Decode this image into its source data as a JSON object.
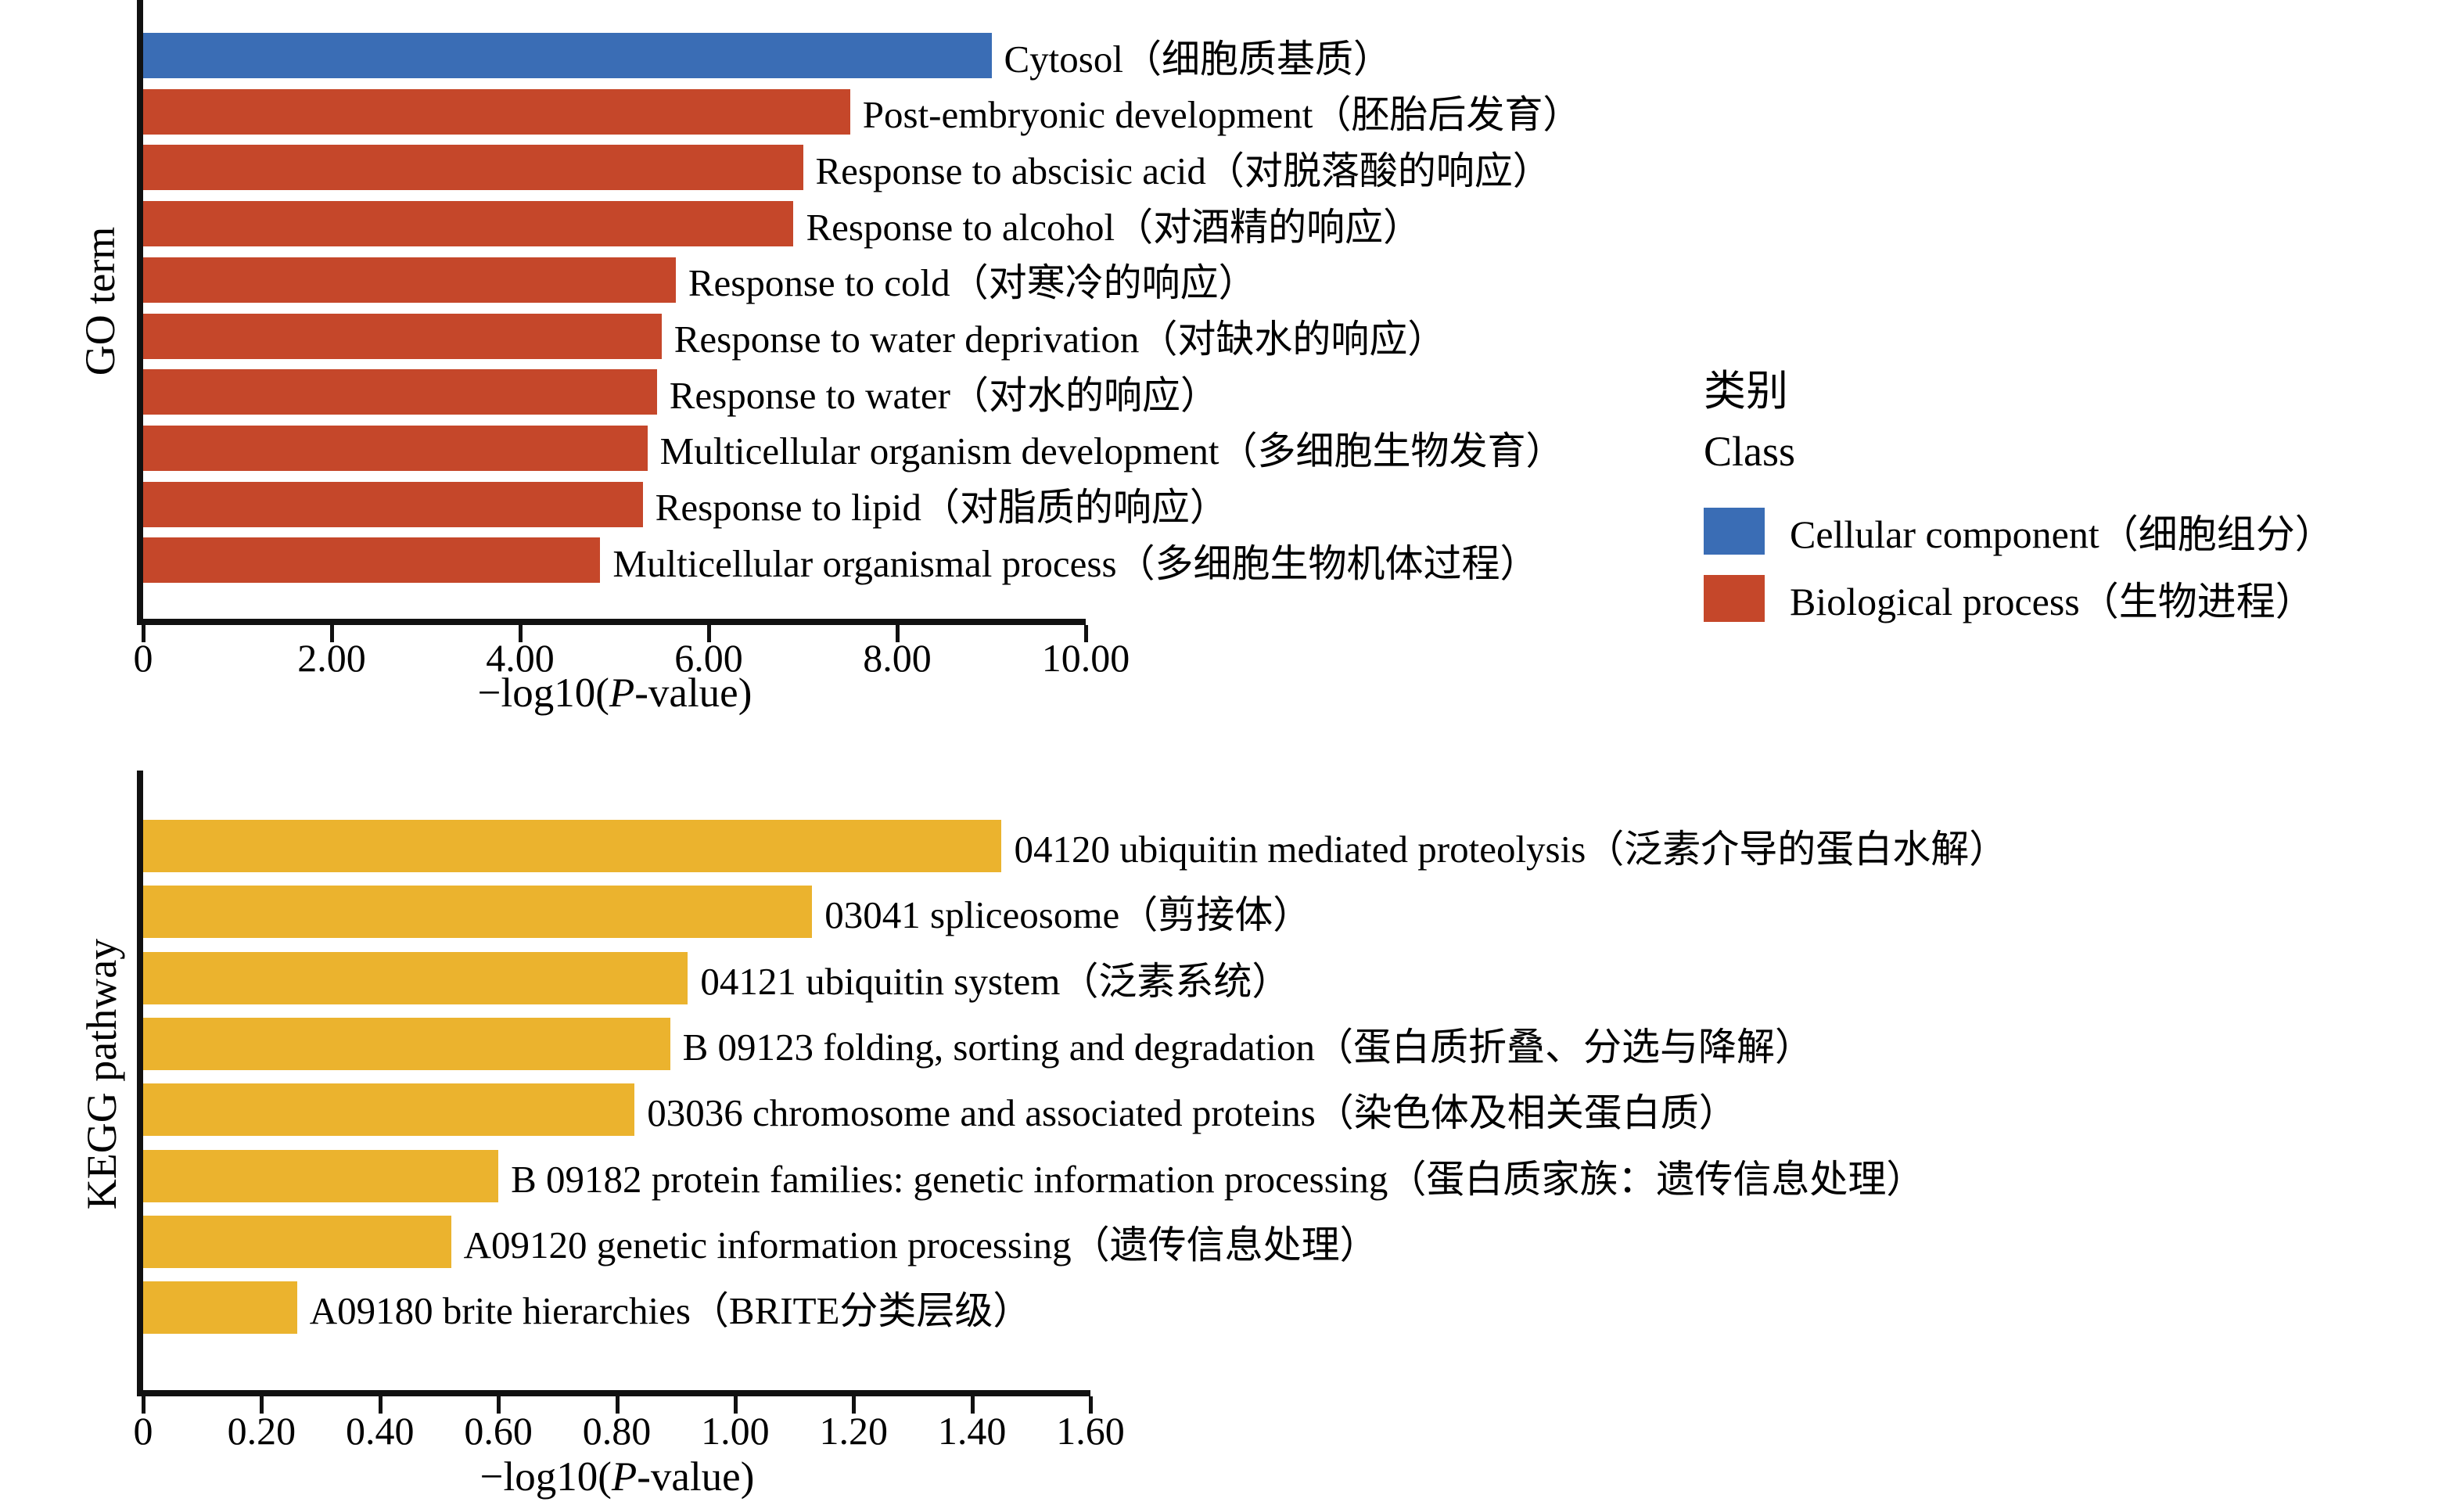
{
  "colors": {
    "cellular_component": "#3A6DB5",
    "biological_process": "#C5472A",
    "kegg_bar": "#EBB32E",
    "axis": "#111111",
    "text": "#000000"
  },
  "xlabel": {
    "prefix": "−log10(",
    "italic": "P",
    "suffix": "-value)"
  },
  "legend": {
    "title_zh": "类别",
    "title_en": "Class",
    "items": [
      {
        "label": "Cellular component（细胞组分）",
        "color_key": "cellular_component"
      },
      {
        "label": "Biological process（生物进程）",
        "color_key": "biological_process"
      }
    ]
  },
  "chart_data": [
    {
      "type": "bar",
      "orientation": "horizontal",
      "ylabel": "GO term",
      "xlabel": "−log10(P-value)",
      "xlim": [
        0,
        10
      ],
      "xticks": [
        "0",
        "2.00",
        "4.00",
        "6.00",
        "8.00",
        "10.00"
      ],
      "xtick_values": [
        0,
        2,
        4,
        6,
        8,
        10
      ],
      "grid": false,
      "legend_position": "right",
      "categories": [
        "Cytosol（细胞质基质）",
        "Post-embryonic development（胚胎后发育）",
        "Response to abscisic acid（对脱落酸的响应）",
        "Response to alcohol（对酒精的响应）",
        "Response to cold（对寒冷的响应）",
        "Response to water deprivation（对缺水的响应）",
        "Response to water（对水的响应）",
        "Multicellular organism development（多细胞生物发育）",
        "Response to lipid（对脂质的响应）",
        "Multicellular organismal process（多细胞生物机体过程）"
      ],
      "values": [
        9.0,
        7.5,
        7.0,
        6.9,
        5.65,
        5.5,
        5.45,
        5.35,
        5.3,
        4.85
      ],
      "classes": [
        "cellular_component",
        "biological_process",
        "biological_process",
        "biological_process",
        "biological_process",
        "biological_process",
        "biological_process",
        "biological_process",
        "biological_process",
        "biological_process"
      ]
    },
    {
      "type": "bar",
      "orientation": "horizontal",
      "ylabel": "KEGG pathway",
      "xlabel": "−log10(P-value)",
      "xlim": [
        0,
        1.6
      ],
      "xticks": [
        "0",
        "0.20",
        "0.40",
        "0.60",
        "0.80",
        "1.00",
        "1.20",
        "1.40",
        "1.60"
      ],
      "xtick_values": [
        0,
        0.2,
        0.4,
        0.6,
        0.8,
        1.0,
        1.2,
        1.4,
        1.6
      ],
      "grid": false,
      "legend_position": "none",
      "categories": [
        "04120 ubiquitin mediated proteolysis（泛素介导的蛋白水解）",
        "03041 spliceosome（剪接体）",
        "04121 ubiquitin system（泛素系统）",
        "B 09123 folding, sorting and degradation（蛋白质折叠、分选与降解）",
        "03036 chromosome and associated proteins（染色体及相关蛋白质）",
        "B 09182 protein families: genetic information processing（蛋白质家族：遗传信息处理）",
        "A09120 genetic information processing（遗传信息处理）",
        "A09180 brite hierarchies（BRITE分类层级）"
      ],
      "values": [
        1.45,
        1.13,
        0.92,
        0.89,
        0.83,
        0.6,
        0.52,
        0.26
      ],
      "classes": [
        "kegg_bar",
        "kegg_bar",
        "kegg_bar",
        "kegg_bar",
        "kegg_bar",
        "kegg_bar",
        "kegg_bar",
        "kegg_bar"
      ]
    }
  ]
}
